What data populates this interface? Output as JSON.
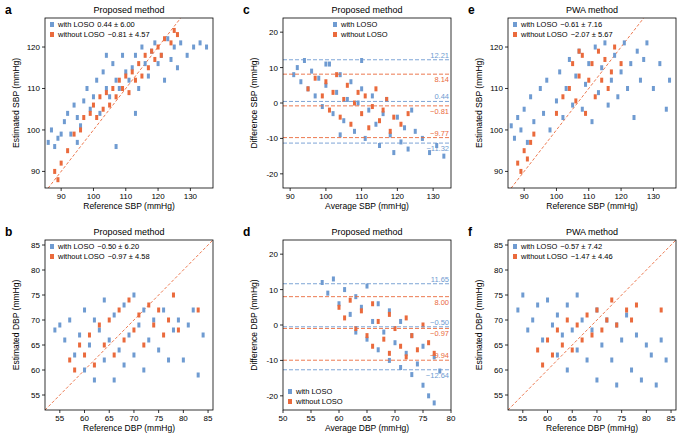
{
  "chart_data": [
    {
      "type": "scatter",
      "panel": "a",
      "title": "Proposed method",
      "x_label": "Reference SBP (mmHg)",
      "y_label": "Estimated SBP (mmHg)",
      "xlim": [
        85,
        137
      ],
      "ylim": [
        86,
        127
      ],
      "xticks": [
        90,
        100,
        110,
        120,
        130
      ],
      "yticks": [
        90,
        100,
        110,
        120
      ],
      "legend": "upper left",
      "marker": "square",
      "series": [
        {
          "name": "with LOSO",
          "stats": "0.44 ± 6.00",
          "color": "#6f9bd1",
          "x": [
            86,
            87,
            88,
            89,
            90,
            91,
            92,
            93,
            94,
            95,
            96,
            97,
            98,
            99,
            100,
            101,
            102,
            103,
            104,
            105,
            106,
            107,
            108,
            109,
            110,
            111,
            112,
            113,
            114,
            115,
            116,
            117,
            118,
            119,
            120,
            121,
            122,
            123,
            124,
            125,
            126,
            127,
            129,
            131,
            133,
            135,
            107,
            113,
            104,
            95
          ],
          "values": [
            97,
            100,
            96,
            98,
            99,
            102,
            104,
            99,
            106,
            103,
            101,
            107,
            110,
            105,
            108,
            112,
            104,
            114,
            110,
            108,
            116,
            112,
            110,
            118,
            114,
            112,
            115,
            118,
            110,
            120,
            116,
            113,
            119,
            121,
            116,
            118,
            112,
            122,
            117,
            120,
            115,
            121,
            118,
            120,
            121,
            120,
            96,
            104,
            118,
            97
          ]
        },
        {
          "name": "without LOSO",
          "stats": "−0.81 ± 4.57",
          "color": "#ea6a3c",
          "x": [
            88,
            89,
            90,
            92,
            94,
            96,
            97,
            99,
            100,
            101,
            102,
            103,
            104,
            105,
            106,
            107,
            108,
            109,
            110,
            111,
            112,
            113,
            114,
            115,
            116,
            117,
            118,
            119,
            120,
            121,
            122,
            124,
            125,
            126
          ],
          "values": [
            90,
            88,
            92,
            95,
            99,
            100,
            103,
            104,
            106,
            103,
            108,
            105,
            109,
            106,
            110,
            108,
            112,
            110,
            113,
            109,
            114,
            112,
            116,
            113,
            118,
            115,
            119,
            117,
            120,
            118,
            122,
            121,
            124,
            123
          ]
        }
      ]
    },
    {
      "type": "scatter",
      "panel": "b",
      "title": "Proposed method",
      "x_label": "Reference DBP (mmHg)",
      "y_label": "Estimated DBP (mmHg)",
      "xlim": [
        52,
        86
      ],
      "ylim": [
        52,
        86
      ],
      "xticks": [
        55,
        60,
        65,
        70,
        75,
        80,
        85
      ],
      "yticks": [
        55,
        60,
        65,
        70,
        75,
        80,
        85
      ],
      "legend": "upper left",
      "marker": "square",
      "series": [
        {
          "name": "with LOSO",
          "stats": "−0.50 ± 6.20",
          "color": "#6f9bd1",
          "x": [
            54,
            55,
            56,
            57,
            58,
            59,
            60,
            60,
            61,
            62,
            62,
            63,
            64,
            64,
            65,
            66,
            66,
            67,
            68,
            68,
            69,
            70,
            70,
            71,
            72,
            72,
            73,
            74,
            75,
            76,
            77,
            78,
            79,
            80,
            81,
            82,
            83,
            84
          ],
          "values": [
            68,
            69,
            66,
            70,
            63,
            67,
            72,
            60,
            65,
            70,
            58,
            68,
            74,
            62,
            66,
            71,
            58,
            64,
            73,
            61,
            67,
            75,
            63,
            69,
            60,
            72,
            66,
            70,
            64,
            72,
            62,
            68,
            70,
            62,
            69,
            72,
            59,
            67
          ]
        },
        {
          "name": "without LOSO",
          "stats": "−0.97 ± 4.58",
          "color": "#ea6a3c",
          "x": [
            57,
            58,
            59,
            60,
            61,
            62,
            63,
            64,
            65,
            66,
            67,
            68,
            69,
            70,
            71,
            72,
            73,
            74,
            75,
            76,
            77,
            78,
            79,
            83
          ],
          "values": [
            62,
            60,
            65,
            63,
            67,
            61,
            69,
            65,
            70,
            63,
            72,
            66,
            74,
            68,
            71,
            65,
            73,
            69,
            72,
            67,
            70,
            75,
            68,
            72
          ]
        }
      ]
    },
    {
      "type": "scatter",
      "panel": "c",
      "title": "Proposed method",
      "x_label": "Average SBP (mmHg)",
      "y_label": "Difference SBP (mmHg)",
      "xlim": [
        88,
        135
      ],
      "ylim": [
        -24,
        24
      ],
      "xticks": [
        90,
        100,
        110,
        120,
        130
      ],
      "yticks": [
        -20,
        -10,
        0,
        10,
        20
      ],
      "legend": "upper center",
      "marker": "square",
      "series": [
        {
          "name": "with LOSO",
          "color": "#6f9bd1",
          "x": [
            91,
            92,
            93,
            94,
            95,
            96,
            97,
            98,
            99,
            100,
            101,
            102,
            103,
            104,
            105,
            106,
            107,
            108,
            109,
            110,
            111,
            112,
            113,
            114,
            115,
            116,
            117,
            118,
            119,
            120,
            121,
            122,
            123,
            124,
            125,
            127,
            129,
            131,
            133,
            104,
            100,
            110
          ],
          "values": [
            8,
            10,
            6,
            12,
            4,
            9,
            2,
            7,
            -1,
            5,
            11,
            -3,
            3,
            8,
            -5,
            1,
            6,
            -8,
            0,
            4,
            -10,
            -2,
            2,
            -6,
            -12,
            -3,
            1,
            -9,
            -14,
            -4,
            -11,
            -7,
            -13,
            -2,
            -8,
            -10,
            -14,
            -12,
            -15,
            -9,
            11,
            12
          ],
          "ref_lines": [
            {
              "value": 12.21,
              "label": "12.21"
            },
            {
              "value": 0.44,
              "label": "0.44"
            },
            {
              "value": -11.32,
              "label": "−11.32"
            }
          ]
        },
        {
          "name": "without LOSO",
          "color": "#ea6a3c",
          "x": [
            95,
            97,
            99,
            100,
            101,
            102,
            103,
            104,
            105,
            106,
            107,
            108,
            109,
            110,
            111,
            112,
            113,
            114,
            115,
            116,
            117,
            118,
            119,
            121,
            123
          ],
          "values": [
            4,
            7,
            2,
            6,
            -2,
            3,
            8,
            -4,
            1,
            5,
            -6,
            0,
            3,
            -3,
            2,
            -7,
            -1,
            4,
            -5,
            -2,
            1,
            -8,
            -4,
            -6,
            -3
          ],
          "ref_lines": [
            {
              "value": 8.14,
              "label": "8.14"
            },
            {
              "value": -0.81,
              "label": "−0.81"
            },
            {
              "value": -9.77,
              "label": "−9.77"
            }
          ]
        }
      ]
    },
    {
      "type": "scatter",
      "panel": "d",
      "title": "Proposed method",
      "x_label": "Average DBP (mmHg)",
      "y_label": "Difference DBP (mmHg)",
      "xlim": [
        50,
        80
      ],
      "ylim": [
        -24,
        24
      ],
      "xticks": [
        50,
        55,
        60,
        65,
        70,
        75,
        80
      ],
      "yticks": [
        -20,
        -10,
        0,
        10,
        20
      ],
      "legend": "lower left",
      "marker": "square",
      "series": [
        {
          "name": "with LOSO",
          "color": "#6f9bd1",
          "x": [
            57,
            58,
            59,
            60,
            61,
            62,
            63,
            63,
            64,
            65,
            65,
            66,
            67,
            67,
            68,
            69,
            69,
            70,
            71,
            71,
            72,
            73,
            73,
            74,
            75,
            75,
            76,
            77,
            77,
            78
          ],
          "values": [
            12,
            9,
            13,
            6,
            10,
            3,
            8,
            -2,
            5,
            -4,
            11,
            1,
            -7,
            6,
            -2,
            -10,
            4,
            -5,
            -12,
            1,
            -8,
            -14,
            -3,
            -11,
            -17,
            -6,
            -20,
            -9,
            -22,
            -13
          ],
          "ref_lines": [
            {
              "value": 11.65,
              "label": "11.65"
            },
            {
              "value": -0.5,
              "label": "−0.50"
            },
            {
              "value": -12.64,
              "label": "−12.64"
            }
          ]
        },
        {
          "name": "without LOSO",
          "color": "#ea6a3c",
          "x": [
            60,
            61,
            62,
            63,
            64,
            65,
            66,
            66,
            67,
            68,
            69,
            69,
            70,
            71,
            72,
            72,
            73,
            74,
            75,
            76,
            77
          ],
          "values": [
            5,
            2,
            7,
            -1,
            4,
            -3,
            6,
            -6,
            1,
            -4,
            3,
            -8,
            -1,
            -6,
            2,
            -9,
            -3,
            -7,
            0,
            -5,
            -8
          ],
          "ref_lines": [
            {
              "value": 8.0,
              "label": "8.00"
            },
            {
              "value": -0.97,
              "label": "−0.97"
            },
            {
              "value": -9.94,
              "label": "−9.94"
            }
          ]
        }
      ]
    },
    {
      "type": "scatter",
      "panel": "e",
      "title": "PWA method",
      "x_label": "Reference SBP (mmHg)",
      "y_label": "Estimated SBP (mmHg)",
      "xlim": [
        85,
        137
      ],
      "ylim": [
        86,
        127
      ],
      "xticks": [
        90,
        100,
        110,
        120,
        130
      ],
      "yticks": [
        90,
        100,
        110,
        120
      ],
      "legend": "upper left",
      "marker": "square",
      "series": [
        {
          "name": "with LOSO",
          "stats": "−0.61 ± 7.16",
          "color": "#6f9bd1",
          "x": [
            86,
            87,
            88,
            89,
            90,
            91,
            92,
            93,
            95,
            96,
            97,
            98,
            100,
            101,
            102,
            103,
            104,
            105,
            106,
            107,
            108,
            109,
            110,
            111,
            112,
            113,
            114,
            115,
            116,
            117,
            118,
            119,
            120,
            121,
            122,
            123,
            124,
            125,
            126,
            127,
            128,
            130,
            132,
            134,
            135
          ],
          "values": [
            101,
            98,
            103,
            100,
            105,
            97,
            108,
            102,
            110,
            104,
            112,
            100,
            107,
            114,
            103,
            110,
            117,
            106,
            113,
            119,
            105,
            111,
            116,
            102,
            120,
            109,
            115,
            121,
            106,
            112,
            118,
            108,
            114,
            121,
            110,
            116,
            103,
            119,
            112,
            117,
            121,
            110,
            116,
            105,
            112
          ]
        },
        {
          "name": "without LOSO",
          "stats": "−2.07 ± 5.67",
          "color": "#ea6a3c",
          "x": [
            88,
            89,
            90,
            91,
            92,
            93,
            100,
            102,
            104,
            105,
            106,
            107,
            107,
            108,
            109,
            110,
            111,
            112,
            113,
            114,
            115,
            116,
            117,
            118,
            120
          ],
          "values": [
            92,
            90,
            95,
            93,
            97,
            99,
            104,
            108,
            110,
            116,
            107,
            113,
            119,
            118,
            104,
            112,
            116,
            108,
            119,
            112,
            117,
            110,
            114,
            120,
            116
          ]
        }
      ]
    },
    {
      "type": "scatter",
      "panel": "f",
      "title": "PWA method",
      "x_label": "Reference DBP (mmHg)",
      "y_label": "Estimated DBP (mmHg)",
      "xlim": [
        52,
        86
      ],
      "ylim": [
        52,
        86
      ],
      "xticks": [
        55,
        60,
        65,
        70,
        75,
        80,
        85
      ],
      "yticks": [
        55,
        60,
        65,
        70,
        75,
        80,
        85
      ],
      "legend": "upper left",
      "marker": "square",
      "series": [
        {
          "name": "with LOSO",
          "stats": "−0.57 ± 7.42",
          "color": "#6f9bd1",
          "x": [
            54,
            55,
            56,
            57,
            58,
            59,
            60,
            61,
            62,
            62,
            63,
            64,
            64,
            65,
            66,
            66,
            67,
            68,
            69,
            70,
            70,
            71,
            72,
            73,
            74,
            74,
            75,
            76,
            77,
            78,
            79,
            80,
            81,
            82,
            83,
            84
          ],
          "values": [
            72,
            75,
            68,
            70,
            73,
            66,
            74,
            69,
            71,
            63,
            67,
            73,
            60,
            68,
            64,
            75,
            70,
            62,
            68,
            72,
            58,
            65,
            70,
            62,
            69,
            57,
            66,
            71,
            60,
            67,
            58,
            65,
            63,
            57,
            66,
            62
          ]
        },
        {
          "name": "without LOSO",
          "stats": "−1.47 ± 4.46",
          "color": "#ea6a3c",
          "x": [
            58,
            59,
            60,
            61,
            62,
            63,
            64,
            65,
            66,
            67,
            68,
            69,
            70,
            71,
            72,
            73,
            74,
            76,
            77,
            78,
            83
          ],
          "values": [
            64,
            61,
            66,
            63,
            68,
            65,
            70,
            64,
            69,
            66,
            71,
            67,
            72,
            68,
            70,
            74,
            69,
            72,
            70,
            73,
            72
          ]
        }
      ]
    }
  ]
}
